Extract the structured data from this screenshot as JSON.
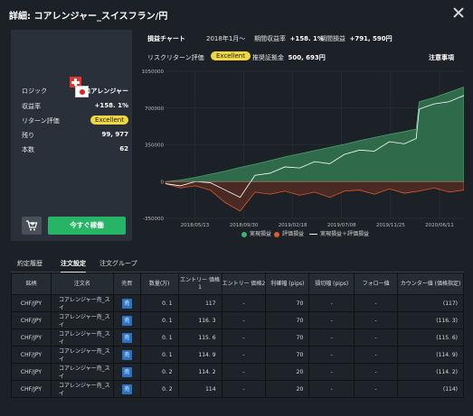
{
  "window": {
    "title": "詳細: コアレンジャー_スイスフラン/円"
  },
  "left_panel": {
    "stats": [
      {
        "key": "ロジック",
        "value": "コアレンジャー"
      },
      {
        "key": "収益率",
        "value": "+158. 1%"
      },
      {
        "key": "リターン評価",
        "value": "Excellent"
      },
      {
        "key": "残り",
        "value": "99, 977"
      },
      {
        "key": "本数",
        "value": "62"
      }
    ],
    "buy_button": "今すぐ稼働"
  },
  "header": {
    "chart_label": "損益チャート",
    "since": "2018年1月～",
    "period_rate_label": "期間収益率",
    "period_rate_value": "+158. 1%",
    "period_pl_label": "期間損益",
    "period_pl_value": "+791, 590円",
    "risk_label": "リスクリターン評価",
    "risk_badge": "Excellent",
    "margin_label": "推奨証拠金",
    "margin_value": "500, 693円",
    "notes": "注意事項"
  },
  "chart_data": {
    "type": "area",
    "x_ticks": [
      "2018/05/13",
      "2018/09/30",
      "2019/02/18",
      "2019/07/08",
      "2019/11/25",
      "2020/06/11"
    ],
    "y_ticks": [
      "1050000",
      "700000",
      "350000",
      "0",
      "-350000"
    ],
    "ylim": [
      -350000,
      1050000
    ],
    "series": [
      {
        "name": "実現損益",
        "color": "#3c8a5a",
        "x": [
          0,
          0.05,
          0.1,
          0.15,
          0.2,
          0.25,
          0.3,
          0.35,
          0.4,
          0.45,
          0.5,
          0.55,
          0.6,
          0.65,
          0.7,
          0.75,
          0.8,
          0.84,
          0.85,
          0.9,
          0.95,
          1.0
        ],
        "values": [
          0,
          15000,
          40000,
          70000,
          100000,
          135000,
          165000,
          200000,
          235000,
          265000,
          295000,
          325000,
          355000,
          390000,
          420000,
          450000,
          475000,
          500000,
          760000,
          800000,
          850000,
          900000
        ]
      },
      {
        "name": "評価損益",
        "color": "#e0592a",
        "x": [
          0,
          0.05,
          0.1,
          0.15,
          0.2,
          0.25,
          0.3,
          0.35,
          0.4,
          0.45,
          0.5,
          0.55,
          0.6,
          0.65,
          0.7,
          0.75,
          0.8,
          0.85,
          0.9,
          0.95,
          1.0
        ],
        "values": [
          -20000,
          -60000,
          -40000,
          -80000,
          -200000,
          -280000,
          -100000,
          -120000,
          -90000,
          -130000,
          -100000,
          -150000,
          -90000,
          -80000,
          -120000,
          -70000,
          -110000,
          -90000,
          -60000,
          -100000,
          -80000
        ]
      },
      {
        "name": "実現損益＋評価損益",
        "color": "#ffffff",
        "x": [
          0,
          0.05,
          0.1,
          0.15,
          0.2,
          0.25,
          0.3,
          0.35,
          0.4,
          0.45,
          0.5,
          0.55,
          0.6,
          0.65,
          0.7,
          0.75,
          0.8,
          0.84,
          0.85,
          0.9,
          0.95,
          1.0
        ],
        "values": [
          -20000,
          -40000,
          0,
          -10000,
          -80000,
          -150000,
          60000,
          80000,
          140000,
          130000,
          190000,
          170000,
          260000,
          300000,
          290000,
          380000,
          360000,
          410000,
          690000,
          740000,
          760000,
          820000
        ]
      }
    ]
  },
  "tabs": [
    "約定履歴",
    "注文設定",
    "注文グループ"
  ],
  "table": {
    "headers": [
      "銘柄",
      "注文名",
      "売買",
      "数量(万)",
      "エントリー 価格1",
      "エントリー 価格2",
      "利確幅 (pips)",
      "損切幅 (pips)",
      "フォロー値",
      "カウンター値 (価格指定)"
    ],
    "rows": [
      [
        "CHF/JPY",
        "コアレンジャー売_スイ",
        "売",
        "0. 1",
        "117",
        "-",
        "70",
        "-",
        "-",
        "(117)"
      ],
      [
        "CHF/JPY",
        "コアレンジャー売_スイ",
        "売",
        "0. 1",
        "116. 3",
        "-",
        "70",
        "-",
        "-",
        "(116. 3)"
      ],
      [
        "CHF/JPY",
        "コアレンジャー売_スイ",
        "売",
        "0. 1",
        "115. 6",
        "-",
        "70",
        "-",
        "-",
        "(115. 6)"
      ],
      [
        "CHF/JPY",
        "コアレンジャー売_スイ",
        "売",
        "0. 1",
        "114. 9",
        "-",
        "70",
        "-",
        "-",
        "(114. 9)"
      ],
      [
        "CHF/JPY",
        "コアレンジャー売_スイ",
        "売",
        "0. 2",
        "114. 2",
        "-",
        "20",
        "-",
        "-",
        "(114. 2)"
      ],
      [
        "CHF/JPY",
        "コアレンジャー売_スイ",
        "売",
        "0. 2",
        "114",
        "-",
        "20",
        "-",
        "-",
        "(114)"
      ]
    ]
  }
}
